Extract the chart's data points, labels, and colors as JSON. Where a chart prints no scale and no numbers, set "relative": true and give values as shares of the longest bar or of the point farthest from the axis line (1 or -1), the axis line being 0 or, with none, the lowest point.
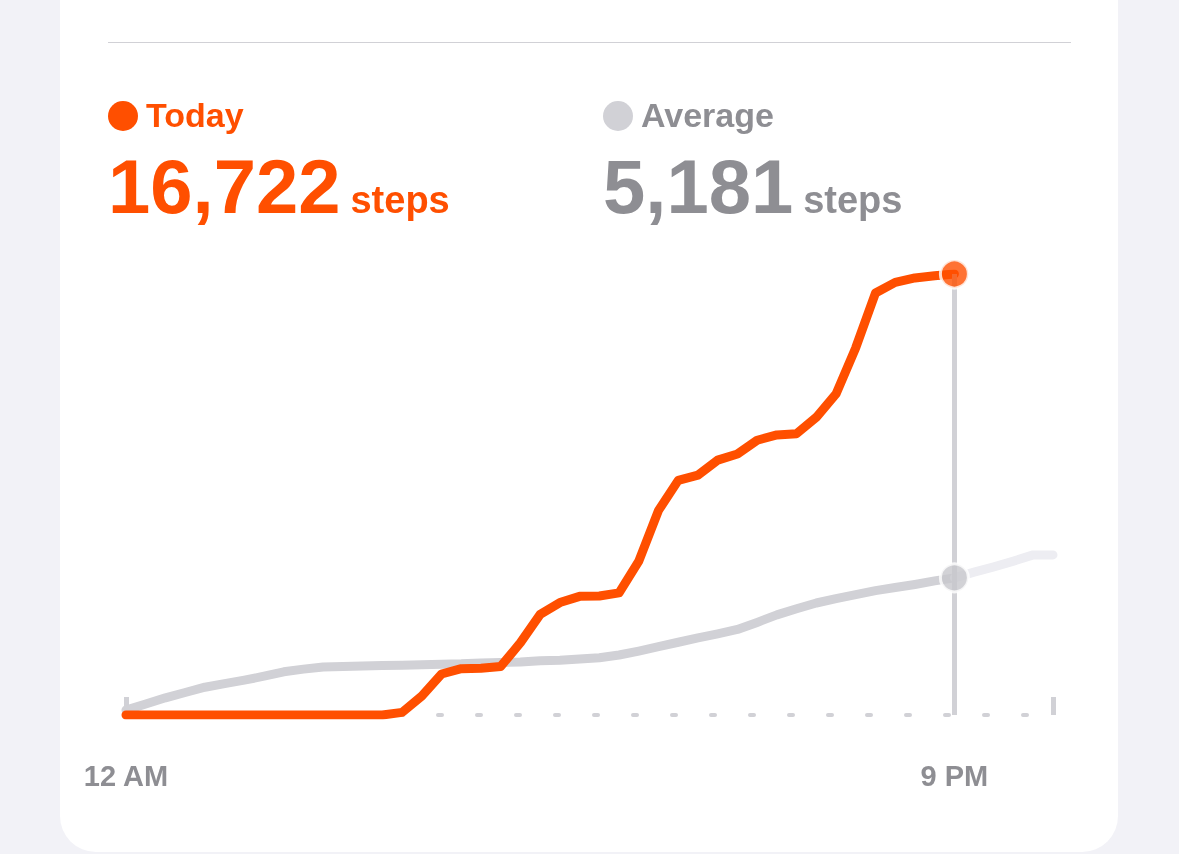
{
  "chart_data": {
    "type": "line",
    "relative": true,
    "legend": "top left",
    "marker": "none",
    "line_style": "solid",
    "grid": false,
    "categories": [
      "12 AM",
      null,
      null,
      null,
      null,
      null,
      null,
      null,
      null,
      null,
      null,
      null,
      null,
      null,
      null,
      null,
      null,
      null,
      null,
      null,
      null,
      null,
      null,
      null,
      null,
      null,
      null,
      null,
      null,
      null,
      null,
      null,
      null,
      null,
      null,
      null,
      null,
      null,
      null,
      null,
      null,
      null,
      "9 PM",
      null,
      null,
      null,
      null,
      null
    ],
    "annotations": [
      "16,722",
      "steps",
      "5,181",
      "steps"
    ],
    "ref_lines": [
      {
        "axis": "x",
        "value": "9 PM",
        "color": "#d1d1d6"
      }
    ],
    "series": [
      {
        "name": "Today",
        "color": "#ff4f00",
        "values": [
          0,
          0,
          0,
          0,
          0,
          0,
          0,
          0,
          0,
          0,
          0,
          0,
          0,
          0,
          0.006,
          0.043,
          0.093,
          0.105,
          0.106,
          0.11,
          0.164,
          0.228,
          0.255,
          0.269,
          0.27,
          0.277,
          0.349,
          0.464,
          0.532,
          0.544,
          0.578,
          0.592,
          0.623,
          0.635,
          0.638,
          0.675,
          0.728,
          0.833,
          0.957,
          0.981,
          0.991,
          0.996,
          1,
          null,
          null,
          null,
          null,
          null
        ]
      },
      {
        "name": "Average",
        "color": "#d1d1d6",
        "values": [
          0.011,
          0.025,
          0.039,
          0.051,
          0.063,
          0.071,
          0.079,
          0.088,
          0.098,
          0.104,
          0.109,
          0.11,
          0.111,
          0.112,
          0.113,
          0.114,
          0.115,
          0.116,
          0.118,
          0.119,
          0.12,
          0.123,
          0.124,
          0.127,
          0.13,
          0.136,
          0.145,
          0.155,
          0.165,
          0.175,
          0.184,
          0.194,
          0.21,
          0.227,
          0.241,
          0.254,
          0.264,
          0.273,
          0.282,
          0.289,
          0.296,
          0.304,
          0.311,
          null,
          null,
          null,
          null,
          null
        ]
      },
      {
        "color": "#ededf2",
        "values": [
          null,
          null,
          null,
          null,
          null,
          null,
          null,
          null,
          null,
          null,
          null,
          null,
          null,
          null,
          null,
          null,
          null,
          null,
          null,
          null,
          null,
          null,
          null,
          null,
          null,
          null,
          null,
          null,
          null,
          null,
          null,
          null,
          null,
          null,
          null,
          null,
          null,
          null,
          null,
          null,
          null,
          null,
          0.311,
          0.324,
          0.336,
          0.349,
          0.363,
          0.363
        ]
      },
      {
        "type": "scatter",
        "marker": "circle",
        "color": "#ff4f00",
        "values": [
          null,
          null,
          null,
          null,
          null,
          null,
          null,
          null,
          null,
          null,
          null,
          null,
          null,
          null,
          null,
          null,
          null,
          null,
          null,
          null,
          null,
          null,
          null,
          null,
          null,
          null,
          null,
          null,
          null,
          null,
          null,
          null,
          null,
          null,
          null,
          null,
          null,
          null,
          null,
          null,
          null,
          null,
          1,
          null,
          null,
          null,
          null,
          null
        ]
      },
      {
        "type": "scatter",
        "marker": "circle",
        "color": "#c7c7cc",
        "values": [
          null,
          null,
          null,
          null,
          null,
          null,
          null,
          null,
          null,
          null,
          null,
          null,
          null,
          null,
          null,
          null,
          null,
          null,
          null,
          null,
          null,
          null,
          null,
          null,
          null,
          null,
          null,
          null,
          null,
          null,
          null,
          null,
          null,
          null,
          null,
          null,
          null,
          null,
          null,
          null,
          null,
          null,
          0.311,
          null,
          null,
          null,
          null,
          null
        ]
      }
    ]
  }
}
